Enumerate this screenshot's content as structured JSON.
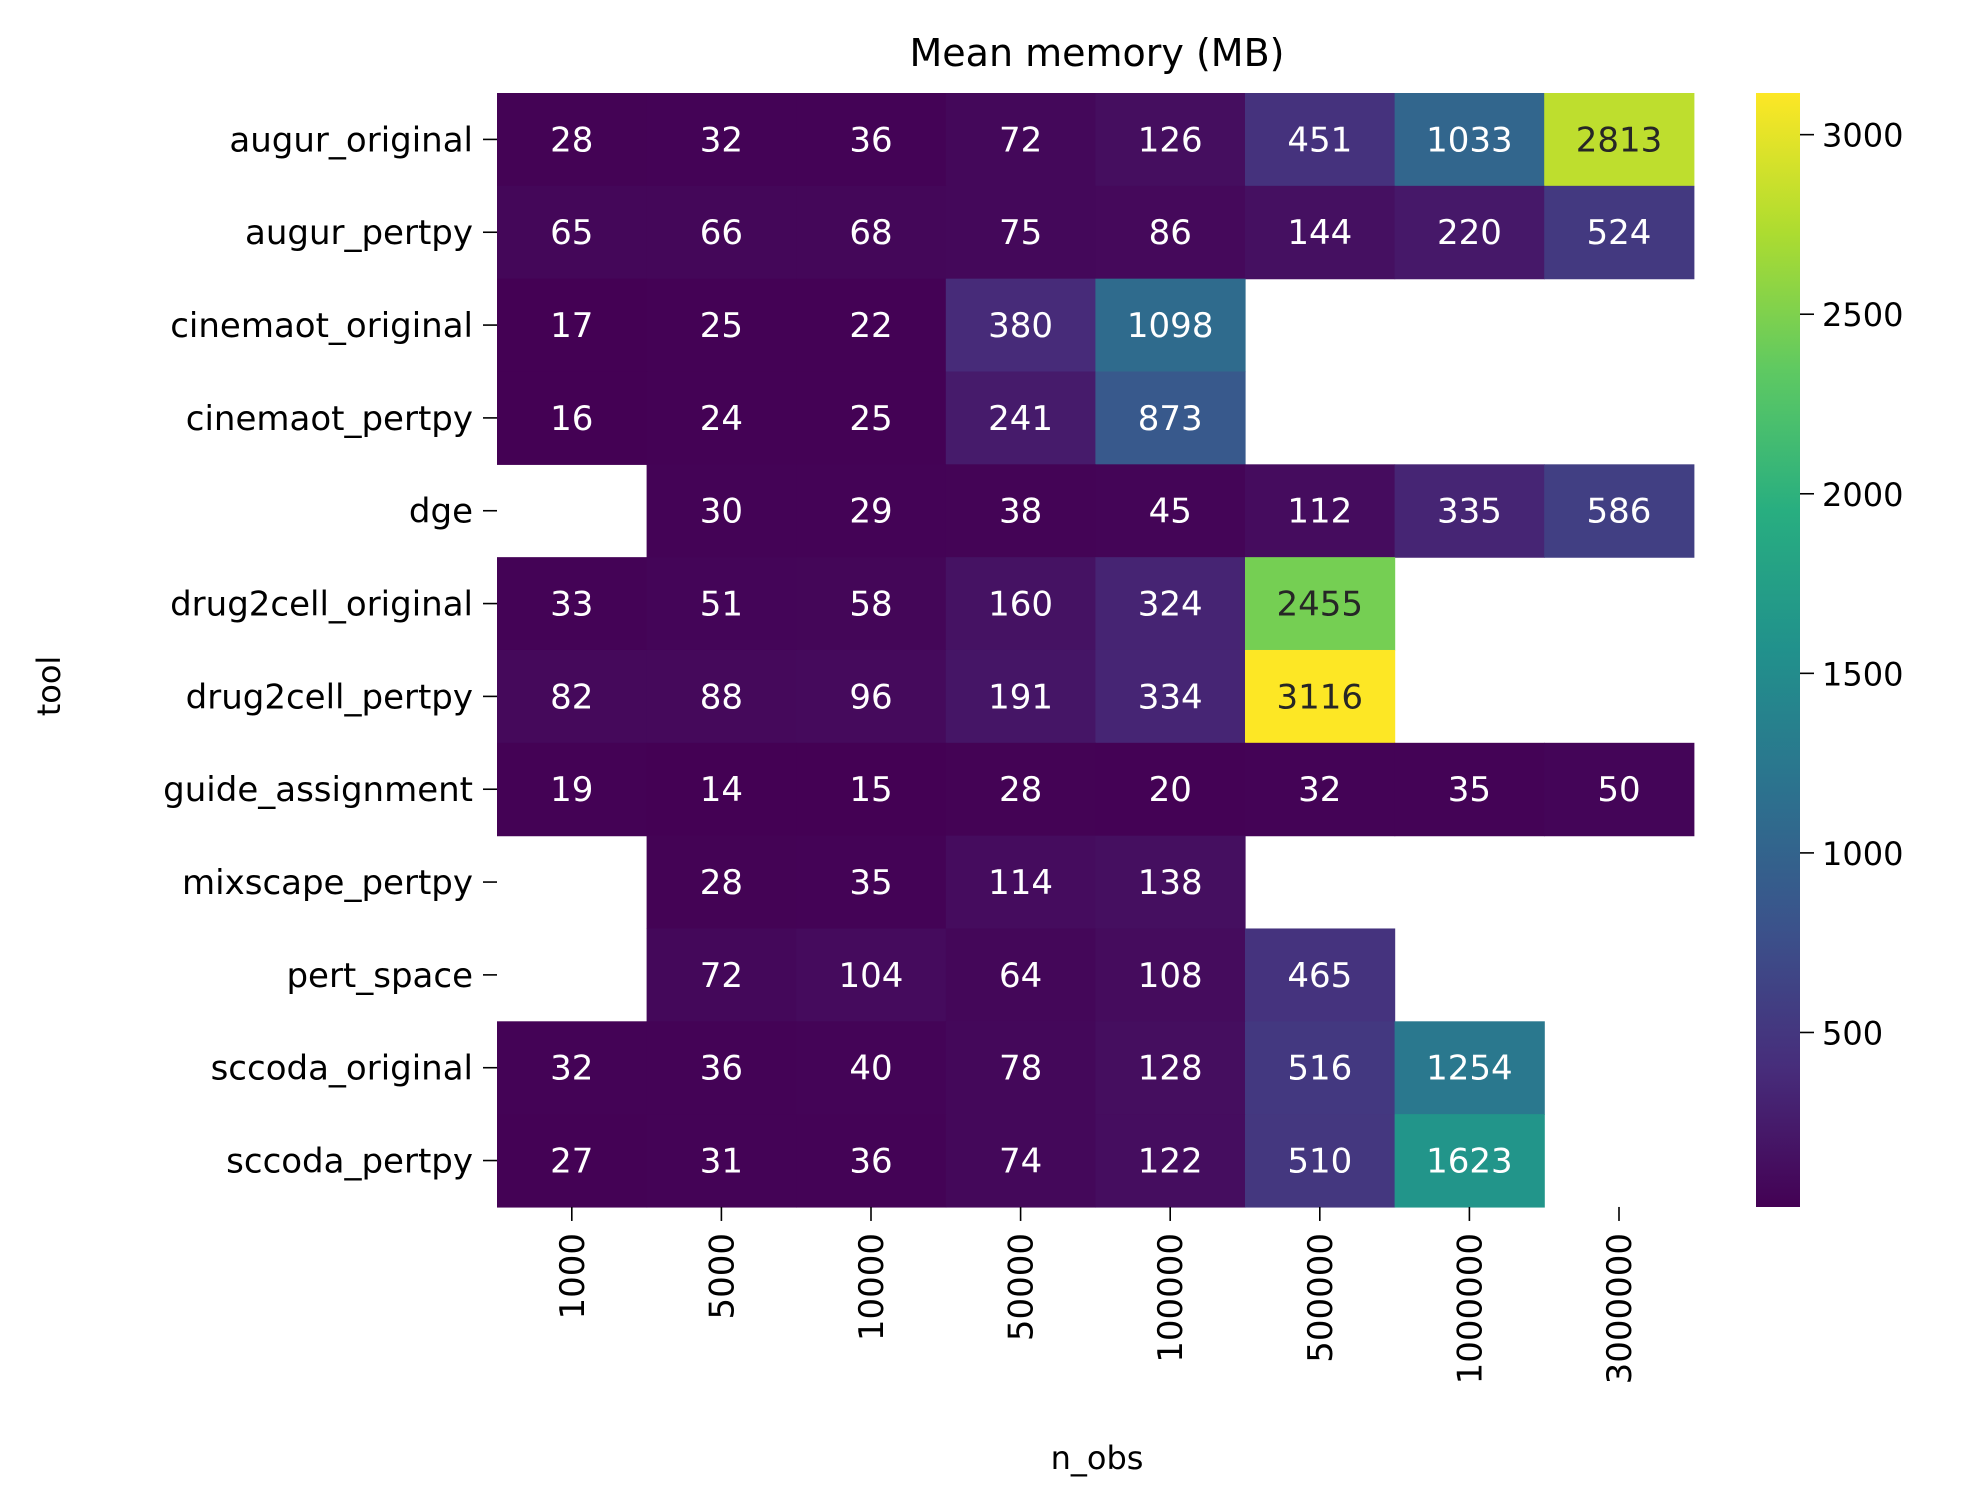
{
  "chart_data": {
    "type": "heatmap",
    "title": "Mean memory (MB)",
    "xlabel": "n_obs",
    "ylabel": "tool",
    "x": [
      "1000",
      "5000",
      "10000",
      "50000",
      "100000",
      "500000",
      "1000000",
      "3000000"
    ],
    "y": [
      "augur_original",
      "augur_pertpy",
      "cinemaot_original",
      "cinemaot_pertpy",
      "dge",
      "drug2cell_original",
      "drug2cell_pertpy",
      "guide_assignment",
      "mixscape_pertpy",
      "pert_space",
      "sccoda_original",
      "sccoda_pertpy"
    ],
    "values": [
      [
        28,
        32,
        36,
        72,
        126,
        451,
        1033,
        2813
      ],
      [
        65,
        66,
        68,
        75,
        86,
        144,
        220,
        524
      ],
      [
        17,
        25,
        22,
        380,
        1098,
        null,
        null,
        null
      ],
      [
        16,
        24,
        25,
        241,
        873,
        null,
        null,
        null
      ],
      [
        null,
        30,
        29,
        38,
        45,
        112,
        335,
        586
      ],
      [
        33,
        51,
        58,
        160,
        324,
        2455,
        null,
        null
      ],
      [
        82,
        88,
        96,
        191,
        334,
        3116,
        null,
        null
      ],
      [
        19,
        14,
        15,
        28,
        20,
        32,
        35,
        50
      ],
      [
        null,
        28,
        35,
        114,
        138,
        null,
        null,
        null
      ],
      [
        null,
        72,
        104,
        64,
        108,
        465,
        null,
        null
      ],
      [
        32,
        36,
        40,
        78,
        128,
        516,
        1254,
        null
      ],
      [
        27,
        31,
        36,
        74,
        122,
        510,
        1623,
        null
      ]
    ],
    "colormap": "viridis",
    "vmin": 14,
    "vmax": 3116,
    "colorbar_ticks": [
      "500",
      "1000",
      "1500",
      "2000",
      "2500",
      "3000"
    ],
    "colorbar_tick_values": [
      500,
      1000,
      1500,
      2000,
      2500,
      3000
    ],
    "annotation_colors": {
      "light": "#ffffff",
      "dark": "#262626"
    },
    "legend": "colorbar-right"
  }
}
